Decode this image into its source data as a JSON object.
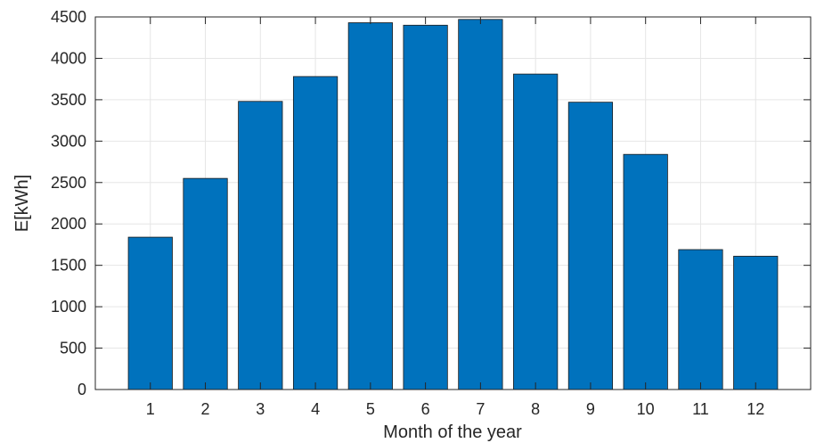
{
  "chart_data": {
    "type": "bar",
    "title": "",
    "xlabel": "Month of the year",
    "ylabel": "E[kWh]",
    "categories": [
      "1",
      "2",
      "3",
      "4",
      "5",
      "6",
      "7",
      "8",
      "9",
      "10",
      "11",
      "12"
    ],
    "values": [
      1840,
      2550,
      3480,
      3780,
      4430,
      4400,
      4470,
      3810,
      3470,
      2840,
      1690,
      1610
    ],
    "ylim": [
      0,
      4500
    ],
    "yticks": [
      0,
      500,
      1000,
      1500,
      2000,
      2500,
      3000,
      3500,
      4000,
      4500
    ],
    "grid": true,
    "legend": "none",
    "colors": {
      "bar_fill": "#0072BD",
      "bar_edge": "#1a1a1a",
      "grid": "#e6e6e6",
      "axis": "#262626"
    }
  }
}
